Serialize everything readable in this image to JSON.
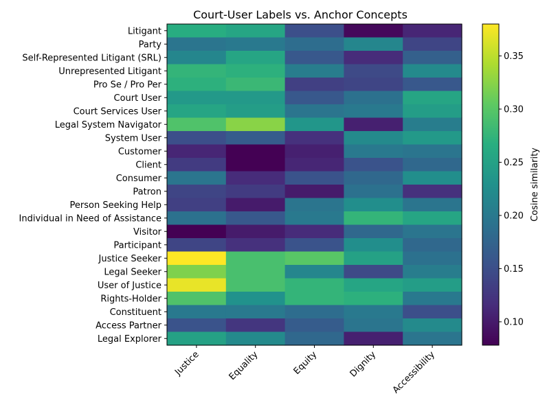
{
  "chart_data": {
    "type": "heatmap",
    "title": "Court-User Labels vs. Anchor Concepts",
    "xlabel": "",
    "ylabel": "",
    "columns": [
      "Justice",
      "Equality",
      "Equity",
      "Dignity",
      "Accessibility"
    ],
    "rows": [
      "Litigant",
      "Party",
      "Self-Represented Litigant (SRL)",
      "Unrepresented Litigant",
      "Pro Se / Pro Per",
      "Court User",
      "Court Services User",
      "Legal System Navigator",
      "System User",
      "Customer",
      "Client",
      "Consumer",
      "Patron",
      "Person Seeking Help",
      "Individual in Need of Assistance",
      "Visitor",
      "Participant",
      "Justice Seeker",
      "Legal Seeker",
      "User of Justice",
      "Rights-Holder",
      "Constituent",
      "Access Partner",
      "Legal Explorer"
    ],
    "values": [
      [
        0.265,
        0.255,
        0.15,
        0.085,
        0.11
      ],
      [
        0.195,
        0.2,
        0.185,
        0.215,
        0.14
      ],
      [
        0.215,
        0.255,
        0.16,
        0.115,
        0.17
      ],
      [
        0.275,
        0.27,
        0.205,
        0.145,
        0.22
      ],
      [
        0.27,
        0.28,
        0.135,
        0.14,
        0.16
      ],
      [
        0.24,
        0.24,
        0.16,
        0.19,
        0.255
      ],
      [
        0.255,
        0.245,
        0.195,
        0.2,
        0.245
      ],
      [
        0.295,
        0.325,
        0.235,
        0.105,
        0.205
      ],
      [
        0.15,
        0.165,
        0.12,
        0.22,
        0.24
      ],
      [
        0.11,
        0.078,
        0.105,
        0.2,
        0.195
      ],
      [
        0.13,
        0.078,
        0.11,
        0.155,
        0.18
      ],
      [
        0.195,
        0.115,
        0.155,
        0.18,
        0.225
      ],
      [
        0.14,
        0.13,
        0.1,
        0.19,
        0.12
      ],
      [
        0.135,
        0.1,
        0.195,
        0.225,
        0.195
      ],
      [
        0.19,
        0.16,
        0.2,
        0.275,
        0.255
      ],
      [
        0.078,
        0.1,
        0.115,
        0.18,
        0.195
      ],
      [
        0.14,
        0.12,
        0.155,
        0.225,
        0.18
      ],
      [
        0.38,
        0.29,
        0.3,
        0.25,
        0.19
      ],
      [
        0.32,
        0.29,
        0.215,
        0.145,
        0.205
      ],
      [
        0.37,
        0.29,
        0.275,
        0.255,
        0.245
      ],
      [
        0.295,
        0.23,
        0.275,
        0.27,
        0.2
      ],
      [
        0.2,
        0.2,
        0.185,
        0.2,
        0.15
      ],
      [
        0.155,
        0.125,
        0.165,
        0.195,
        0.22
      ],
      [
        0.25,
        0.22,
        0.18,
        0.105,
        0.195
      ]
    ],
    "colormap": "viridis",
    "vmin": 0.078,
    "vmax": 0.38,
    "colorbar_label": "Cosine similarity",
    "colorbar_ticks": [
      0.1,
      0.15,
      0.2,
      0.25,
      0.3,
      0.35
    ],
    "colorbar_tick_labels": [
      "0.10",
      "0.15",
      "0.20",
      "0.25",
      "0.30",
      "0.35"
    ]
  }
}
